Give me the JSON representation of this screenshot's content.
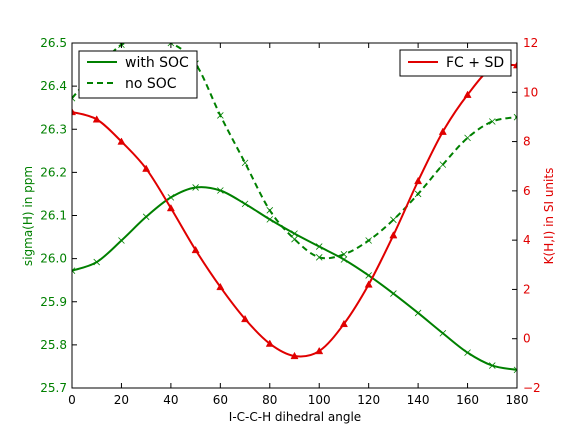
{
  "chart_data": {
    "type": "line",
    "xlabel": "I-C-C-H dihedral angle",
    "ylabel_left": "sigma(H) in ppm",
    "ylabel_right": "K(H,I) in SI units",
    "xlim": [
      0,
      180
    ],
    "ylim_left": [
      25.7,
      26.5
    ],
    "ylim_right": [
      -2,
      12
    ],
    "x_ticks": [
      "0",
      "20",
      "40",
      "60",
      "80",
      "100",
      "120",
      "140",
      "160",
      "180"
    ],
    "y_left_ticks": [
      "25.7",
      "25.8",
      "25.9",
      "26.0",
      "26.1",
      "26.2",
      "26.3",
      "26.4",
      "26.5"
    ],
    "y_right_ticks": [
      "−2",
      "0",
      "2",
      "4",
      "6",
      "8",
      "10",
      "12"
    ],
    "colors": {
      "left": "#008000",
      "right": "#e00000"
    },
    "grid": false,
    "legend_left": {
      "placement": "upper-left",
      "entries": [
        "with SOC",
        "no SOC"
      ]
    },
    "legend_right": {
      "placement": "upper-right",
      "entries": [
        "FC + SD"
      ]
    },
    "x": [
      0,
      10,
      20,
      30,
      40,
      50,
      60,
      70,
      80,
      90,
      100,
      110,
      120,
      130,
      140,
      150,
      160,
      170,
      180
    ],
    "series": [
      {
        "name": "with SOC",
        "axis": "left",
        "style": "solid",
        "marker": "x",
        "values": [
          25.972,
          25.992,
          26.042,
          26.097,
          26.142,
          26.165,
          26.158,
          26.127,
          26.091,
          26.058,
          26.028,
          25.998,
          25.961,
          25.919,
          25.874,
          25.827,
          25.782,
          25.752,
          25.742
        ]
      },
      {
        "name": "no SOC",
        "axis": "left",
        "style": "dashed",
        "marker": "x",
        "values": [
          26.372,
          26.438,
          26.496,
          26.51,
          26.5,
          26.452,
          26.332,
          26.222,
          26.112,
          26.045,
          26.003,
          26.01,
          26.042,
          26.09,
          26.15,
          26.218,
          26.28,
          26.318,
          26.328
        ]
      },
      {
        "name": "FC + SD",
        "axis": "right",
        "style": "solid",
        "marker": "triangle",
        "values": [
          9.2,
          8.9,
          8.0,
          6.9,
          5.3,
          3.6,
          2.1,
          0.8,
          -0.2,
          -0.7,
          -0.5,
          0.6,
          2.2,
          4.2,
          6.4,
          8.4,
          9.9,
          11.0,
          11.1
        ]
      }
    ]
  }
}
